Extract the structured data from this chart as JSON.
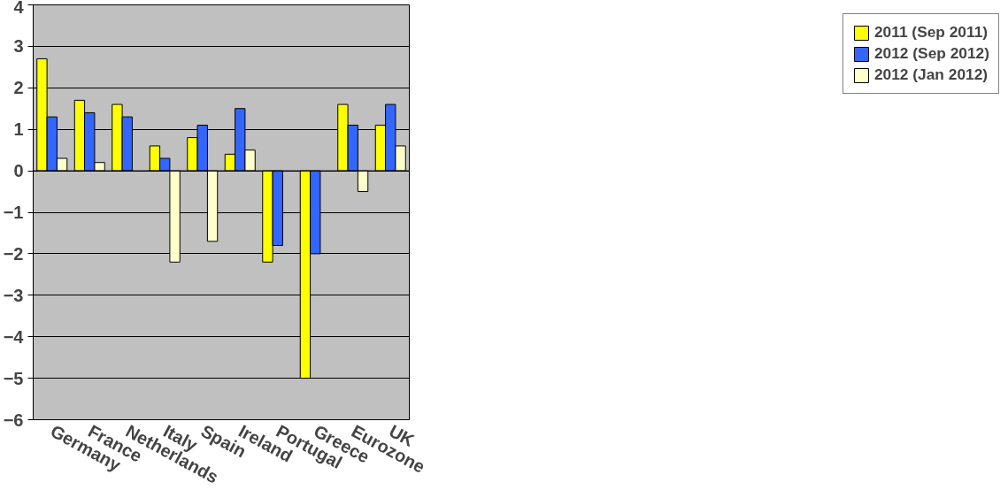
{
  "chart_data": {
    "type": "bar",
    "categories": [
      "Germany",
      "France",
      "Netherlands",
      "Italy",
      "Spain",
      "Ireland",
      "Portugal",
      "Greece",
      "Eurozone",
      "UK"
    ],
    "series": [
      {
        "name": "2011 (Sep 2011)",
        "color": "#ffff00",
        "values": [
          2.7,
          1.7,
          1.6,
          0.6,
          0.8,
          0.4,
          -2.2,
          -5.0,
          1.6,
          1.1
        ]
      },
      {
        "name": "2012 (Sep 2012)",
        "color": "#3366ff",
        "values": [
          1.3,
          1.4,
          1.3,
          0.3,
          1.1,
          1.5,
          -1.8,
          -2.0,
          1.1,
          1.6
        ]
      },
      {
        "name": "2012 (Jan 2012)",
        "color": "#ffffcc",
        "values": [
          0.3,
          0.2,
          null,
          -2.2,
          -1.7,
          0.5,
          null,
          null,
          -0.5,
          0.6
        ]
      }
    ],
    "ylim": [
      -6,
      4
    ],
    "yticks": [
      -6,
      -5,
      -4,
      -3,
      -2,
      -1,
      0,
      1,
      2,
      3,
      4
    ],
    "grid": "y",
    "legend": "right"
  }
}
